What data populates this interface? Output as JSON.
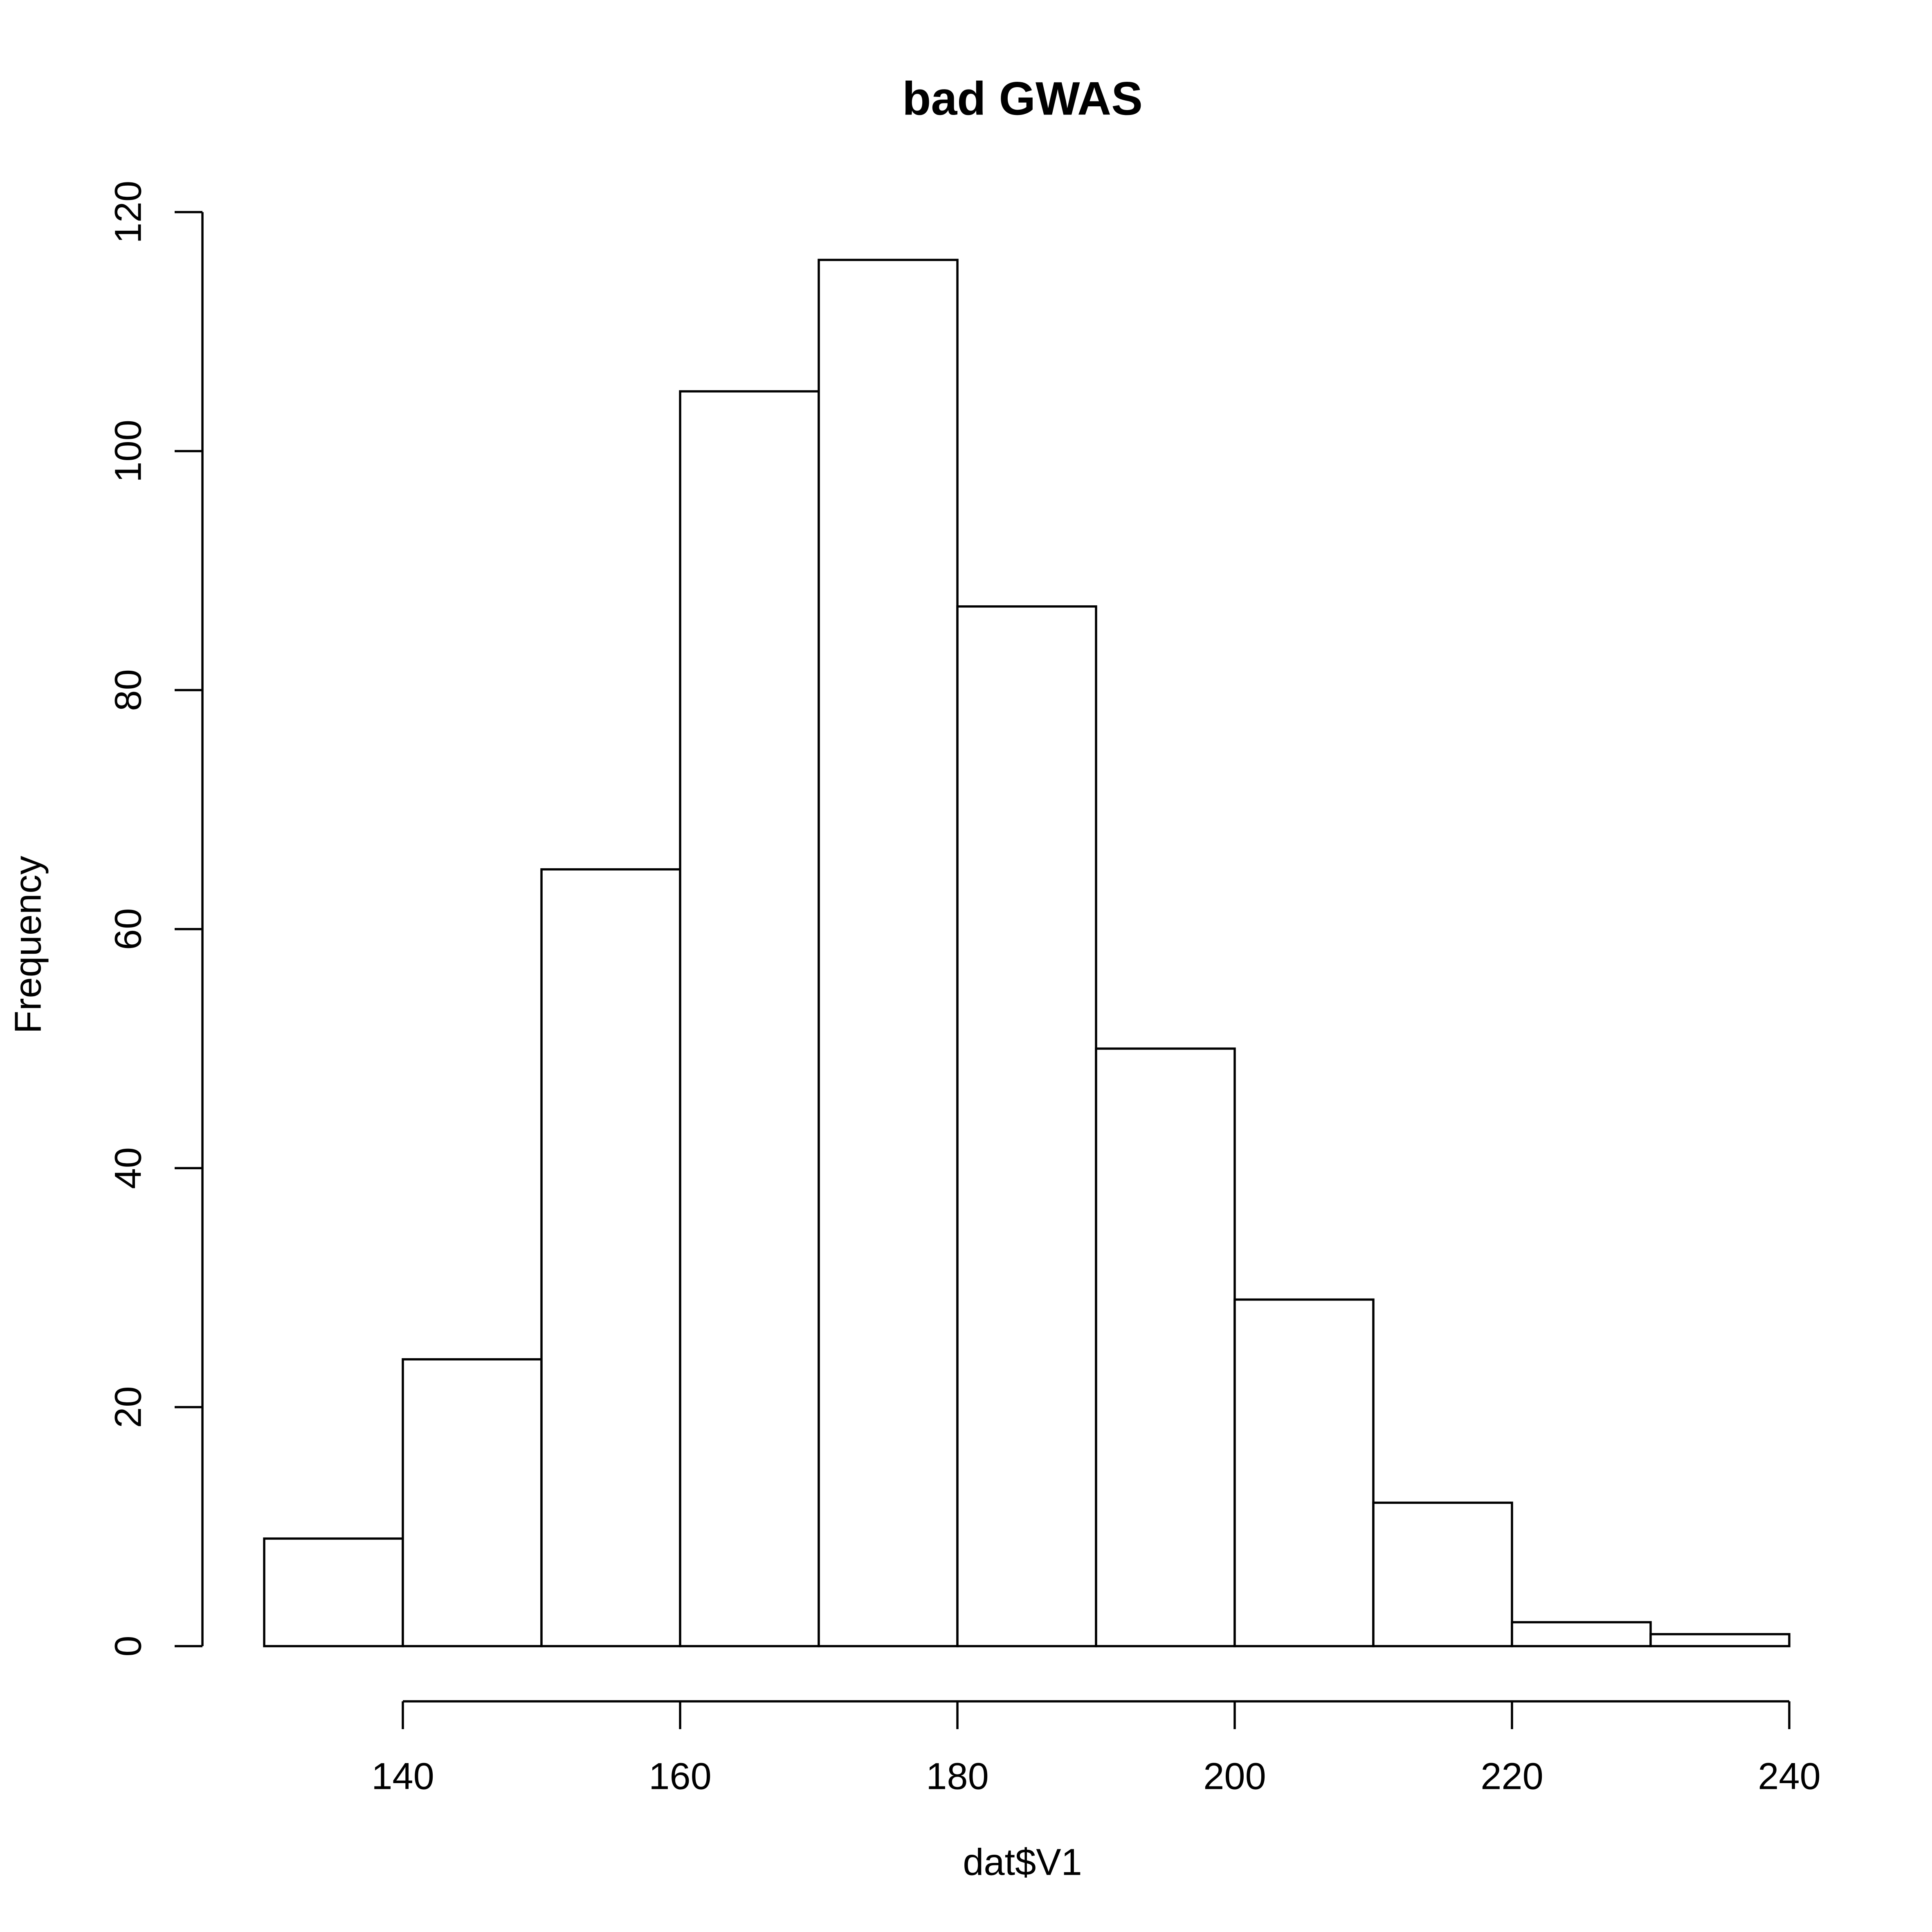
{
  "chart_data": {
    "type": "bar",
    "title": "bad GWAS",
    "xlabel": "dat$V1",
    "ylabel": "Frequency",
    "bins": [
      {
        "start": 130,
        "end": 140,
        "count": 9
      },
      {
        "start": 140,
        "end": 150,
        "count": 24
      },
      {
        "start": 150,
        "end": 160,
        "count": 65
      },
      {
        "start": 160,
        "end": 170,
        "count": 105
      },
      {
        "start": 170,
        "end": 180,
        "count": 116
      },
      {
        "start": 180,
        "end": 190,
        "count": 87
      },
      {
        "start": 190,
        "end": 200,
        "count": 50
      },
      {
        "start": 200,
        "end": 210,
        "count": 29
      },
      {
        "start": 210,
        "end": 220,
        "count": 12
      },
      {
        "start": 220,
        "end": 230,
        "count": 2
      },
      {
        "start": 230,
        "end": 240,
        "count": 1
      }
    ],
    "xlim": [
      130,
      240
    ],
    "ylim": [
      0,
      120
    ],
    "x_ticks": [
      "140",
      "160",
      "180",
      "200",
      "220",
      "240"
    ],
    "y_ticks": [
      "0",
      "20",
      "40",
      "60",
      "80",
      "100",
      "120"
    ],
    "grid": false,
    "legend": "none",
    "colors": {
      "bar_fill": "#ffffff",
      "bar_stroke": "#000000",
      "axis": "#000000",
      "background": "#ffffff"
    }
  }
}
